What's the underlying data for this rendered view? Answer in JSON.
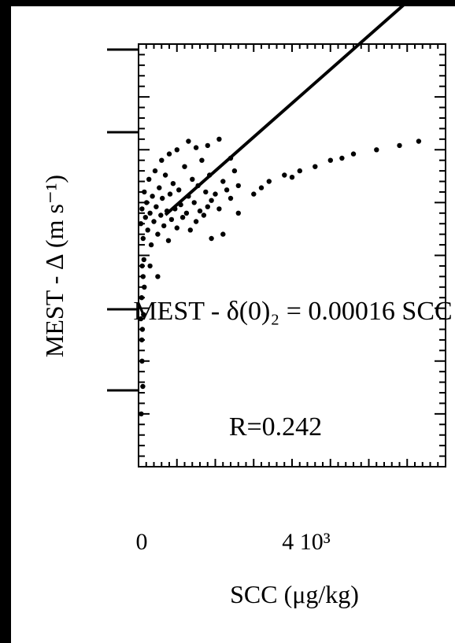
{
  "chart_data": {
    "type": "scatter",
    "ylabel": "MEST - ∆ (m s⁻¹)",
    "xlabel": "SCC (μg/kg)",
    "x_ticks": [
      "0",
      "4 10³"
    ],
    "annotation": {
      "line1": "MEST - δ(0)₂ = 0.00016 SCC",
      "line2": "R=0.242"
    },
    "fit": {
      "slope": 0.00016,
      "r": 0.242
    },
    "xlim": [
      0,
      8000
    ],
    "ylim": [
      -0.5,
      1.5
    ],
    "grid": false,
    "series": [
      {
        "points": [
          [
            60,
            0.65
          ],
          [
            90,
            0.72
          ],
          [
            120,
            0.58
          ],
          [
            150,
            0.8
          ],
          [
            180,
            0.68
          ],
          [
            210,
            0.75
          ],
          [
            240,
            0.62
          ],
          [
            270,
            0.86
          ],
          [
            300,
            0.7
          ],
          [
            330,
            0.55
          ],
          [
            360,
            0.78
          ],
          [
            400,
            0.66
          ],
          [
            430,
            0.9
          ],
          [
            460,
            0.73
          ],
          [
            500,
            0.6
          ],
          [
            540,
            0.82
          ],
          [
            580,
            0.69
          ],
          [
            620,
            0.77
          ],
          [
            660,
            0.64
          ],
          [
            700,
            0.88
          ],
          [
            740,
            0.71
          ],
          [
            780,
            0.57
          ],
          [
            820,
            0.79
          ],
          [
            860,
            0.67
          ],
          [
            900,
            0.84
          ],
          [
            950,
            0.72
          ],
          [
            1000,
            0.63
          ],
          [
            1050,
            0.81
          ],
          [
            1100,
            0.74
          ],
          [
            1150,
            0.68
          ],
          [
            1200,
            0.92
          ],
          [
            1250,
            0.7
          ],
          [
            1300,
            0.78
          ],
          [
            1350,
            0.62
          ],
          [
            1400,
            0.86
          ],
          [
            1450,
            0.75
          ],
          [
            1500,
            0.66
          ],
          [
            1550,
            0.83
          ],
          [
            1600,
            0.71
          ],
          [
            1650,
            0.95
          ],
          [
            1700,
            0.69
          ],
          [
            1750,
            0.8
          ],
          [
            1800,
            0.73
          ],
          [
            1850,
            0.88
          ],
          [
            1900,
            0.76
          ],
          [
            2000,
            0.79
          ],
          [
            2100,
            0.72
          ],
          [
            2200,
            0.85
          ],
          [
            2300,
            0.81
          ],
          [
            2400,
            0.77
          ],
          [
            2500,
            0.9
          ],
          [
            2600,
            0.83
          ],
          [
            1000,
            1.0
          ],
          [
            1300,
            1.04
          ],
          [
            1800,
            1.02
          ],
          [
            2100,
            1.05
          ],
          [
            2400,
            0.96
          ],
          [
            800,
            0.98
          ],
          [
            1500,
            1.01
          ],
          [
            600,
            0.95
          ],
          [
            80,
            0.3
          ],
          [
            100,
            0.15
          ],
          [
            90,
            0.0
          ],
          [
            110,
            -0.12
          ],
          [
            70,
            -0.25
          ],
          [
            120,
            0.4
          ],
          [
            150,
            0.35
          ],
          [
            95,
            0.45
          ],
          [
            130,
            0.22
          ],
          [
            85,
            0.1
          ],
          [
            140,
            0.48
          ],
          [
            60,
            0.2
          ],
          [
            2200,
            0.6
          ],
          [
            2600,
            0.7
          ],
          [
            3000,
            0.79
          ],
          [
            3400,
            0.85
          ],
          [
            3800,
            0.88
          ],
          [
            4200,
            0.9
          ],
          [
            4600,
            0.92
          ],
          [
            5000,
            0.95
          ],
          [
            5600,
            0.98
          ],
          [
            6200,
            1.0
          ],
          [
            6800,
            1.02
          ],
          [
            7300,
            1.04
          ],
          [
            1900,
            0.58
          ],
          [
            300,
            0.45
          ],
          [
            500,
            0.4
          ],
          [
            3200,
            0.82
          ],
          [
            4000,
            0.87
          ],
          [
            5300,
            0.96
          ]
        ]
      }
    ]
  }
}
